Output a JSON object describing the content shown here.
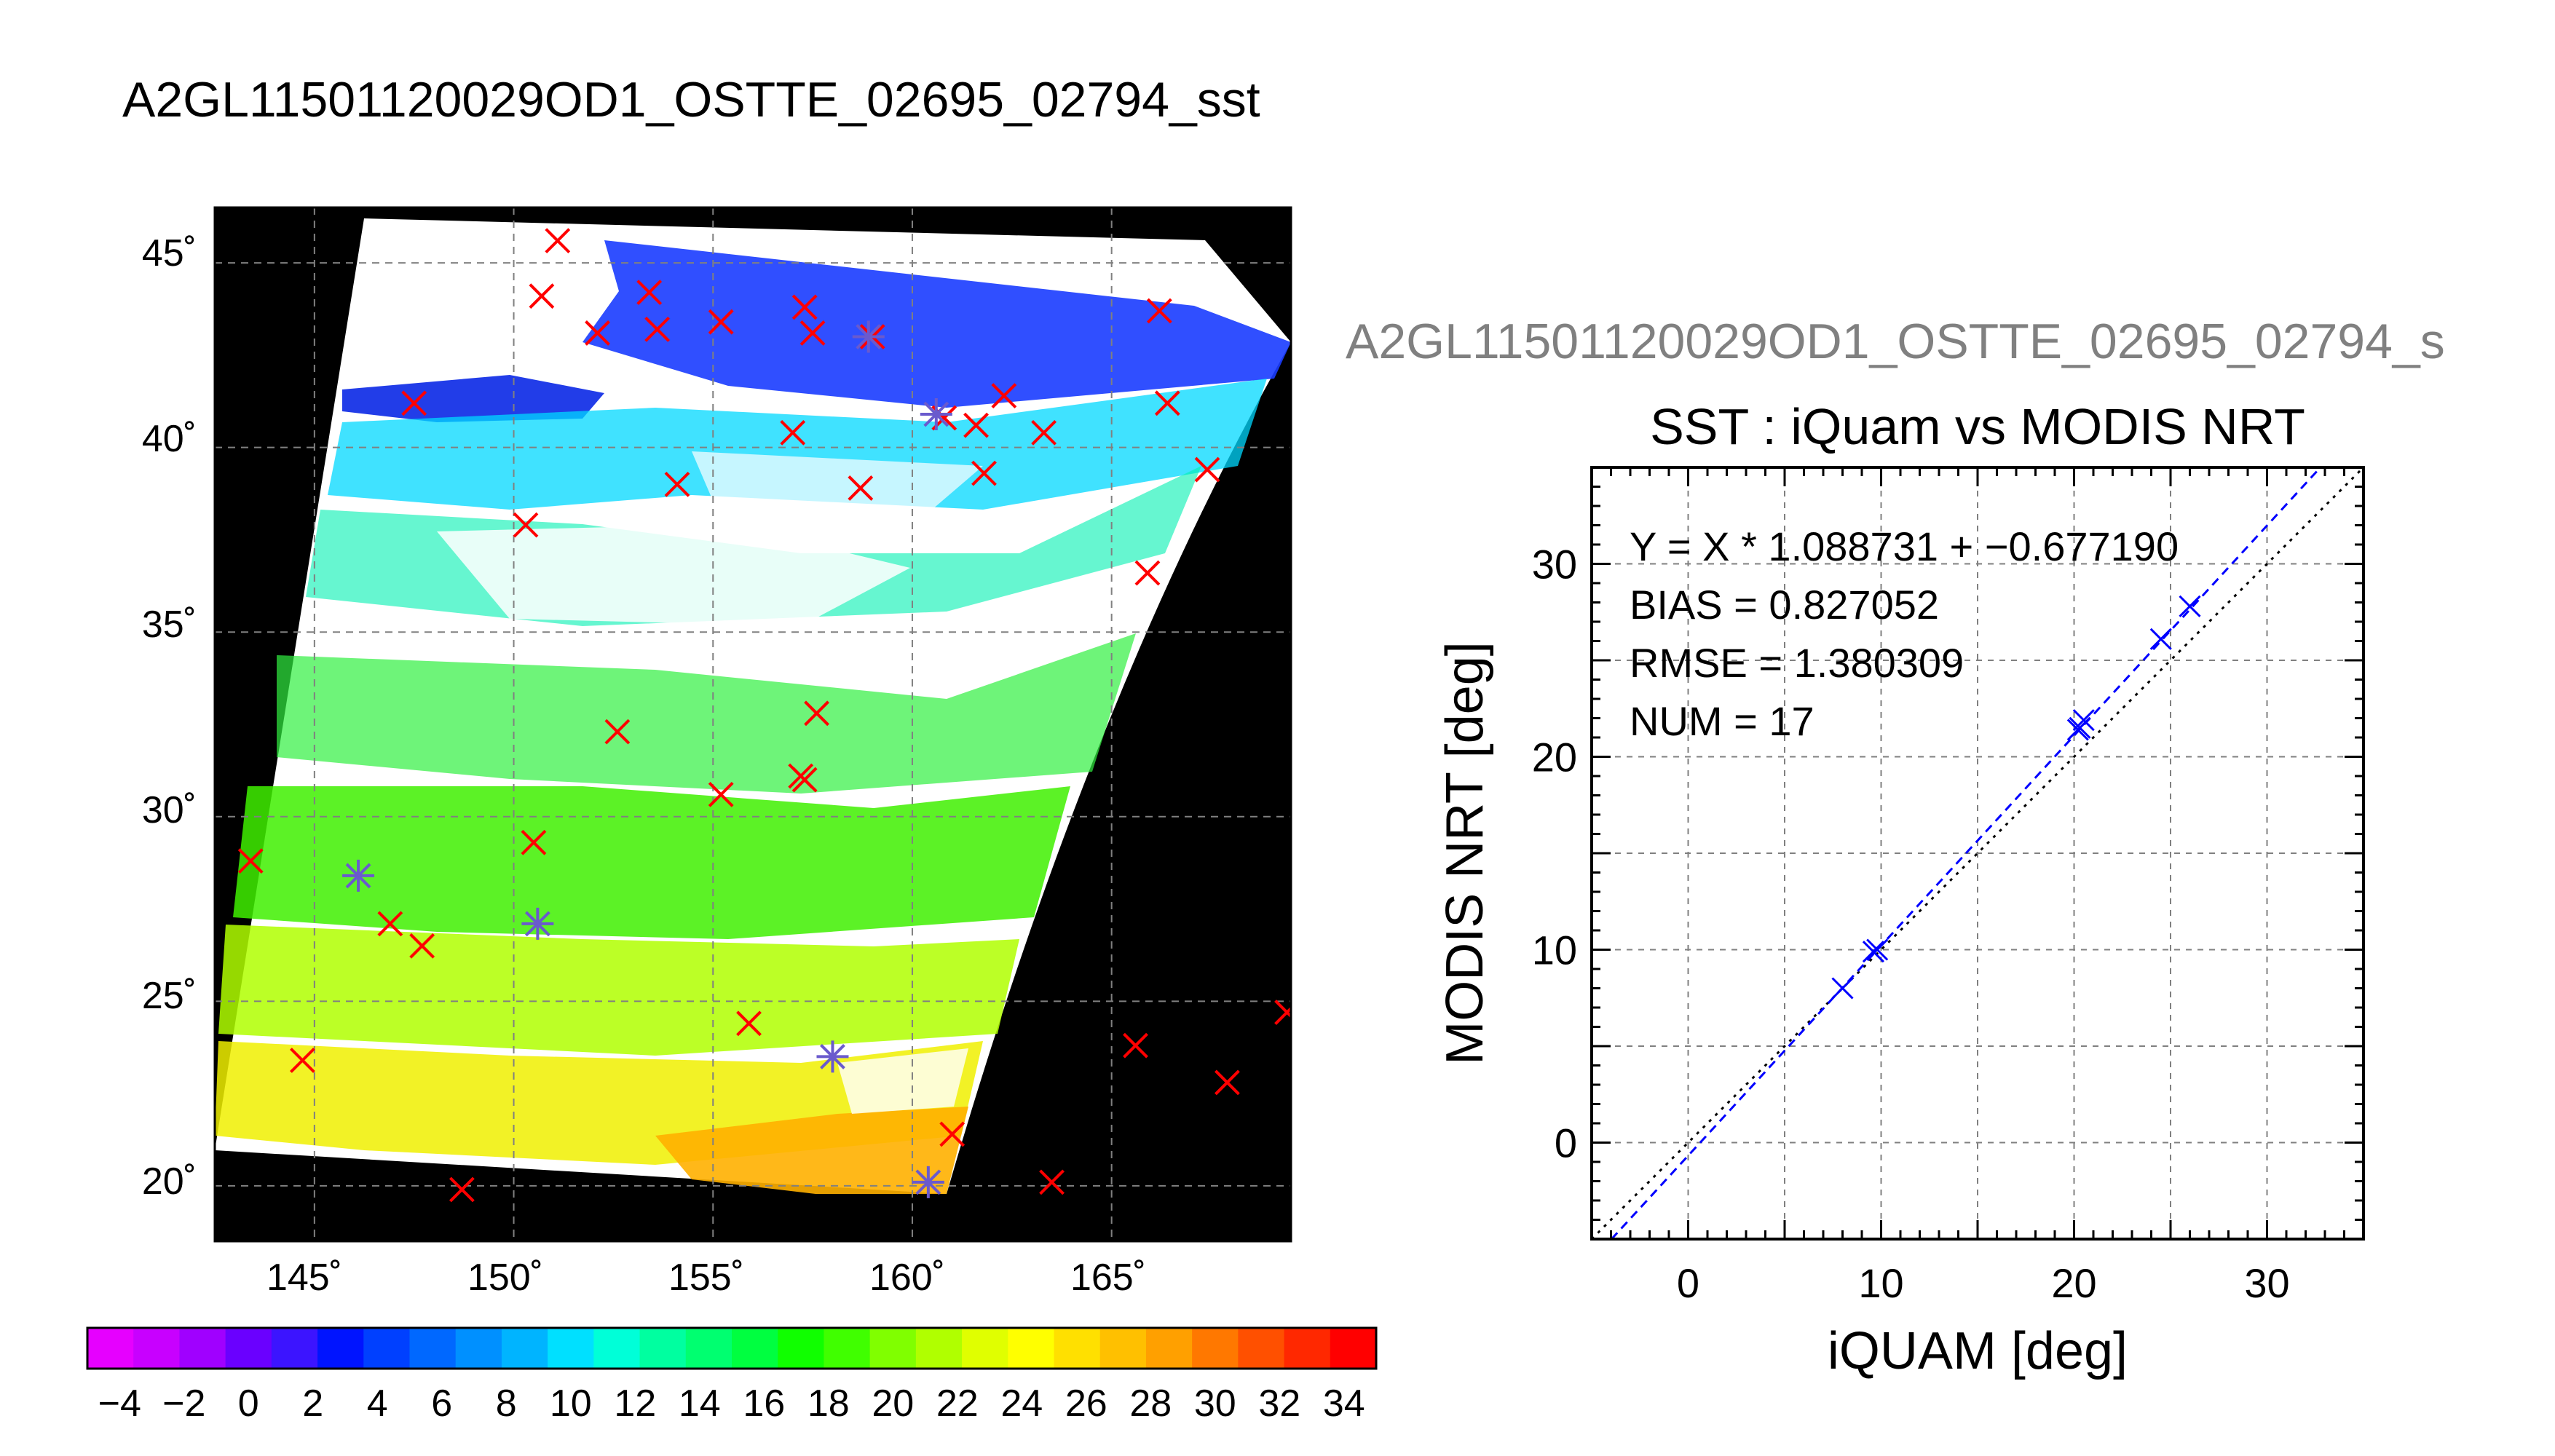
{
  "map": {
    "title": "A2GL11501120029OD1_OSTTE_02695_02794_sst",
    "lat_ticks": [
      "45˚",
      "40˚",
      "35˚",
      "30˚",
      "25˚",
      "20˚"
    ],
    "lon_ticks": [
      "145˚",
      "150˚",
      "155˚",
      "160˚",
      "165˚"
    ]
  },
  "colorbar": {
    "tick_labels": [
      "−4",
      "−2",
      "0",
      "2",
      "4",
      "6",
      "8",
      "10",
      "12",
      "14",
      "16",
      "18",
      "20",
      "22",
      "24",
      "26",
      "28",
      "30",
      "32",
      "34"
    ],
    "colors": [
      "#e600ff",
      "#c800ff",
      "#a000ff",
      "#6a00ff",
      "#3c14ff",
      "#0014ff",
      "#0040ff",
      "#0068ff",
      "#0090ff",
      "#00b4ff",
      "#00e0ff",
      "#00ffd8",
      "#00ffa0",
      "#00ff70",
      "#00ff40",
      "#10ff00",
      "#40ff00",
      "#80ff00",
      "#b0ff00",
      "#e0ff00",
      "#ffff00",
      "#ffe000",
      "#ffc000",
      "#ffa000",
      "#ff7800",
      "#ff5000",
      "#ff2800",
      "#ff0000"
    ]
  },
  "scatter": {
    "file_label": "A2GL11501120029OD1_OSTTE_02695_02794_s",
    "title": "SST : iQuam vs MODIS NRT",
    "xlabel": "iQUAM [deg]",
    "ylabel": "MODIS NRT [deg]",
    "stats": {
      "fit": "Y = X * 1.088731 + −0.677190",
      "bias": "BIAS = 0.827052",
      "rmse": "RMSE = 1.380309",
      "num": "NUM = 17"
    }
  },
  "chart_data": [
    {
      "type": "scatter",
      "title": "A2GL11501120029OD1_OSTTE_02695_02794_sst",
      "xlabel": "",
      "ylabel": "",
      "xlim": [
        142.5,
        169.5
      ],
      "ylim": [
        18.5,
        46.5
      ],
      "x_ticks": [
        145,
        150,
        155,
        160,
        165
      ],
      "y_ticks": [
        20,
        25,
        30,
        35,
        40,
        45
      ],
      "grid": true,
      "colorbar_range": [
        -5,
        35
      ],
      "series": [
        {
          "marker": "x",
          "color": "#ff0000",
          "points": [
            [
              151.1,
              45.6
            ],
            [
              150.7,
              44.1
            ],
            [
              152.1,
              43.1
            ],
            [
              153.4,
              44.2
            ],
            [
              153.6,
              43.2
            ],
            [
              155.2,
              43.4
            ],
            [
              157.3,
              43.8
            ],
            [
              157.5,
              43.1
            ],
            [
              159.0,
              43.0
            ],
            [
              147.5,
              41.2
            ],
            [
              160.8,
              40.8
            ],
            [
              161.6,
              40.6
            ],
            [
              162.3,
              41.4
            ],
            [
              163.3,
              40.4
            ],
            [
              166.2,
              43.7
            ],
            [
              166.4,
              41.2
            ],
            [
              167.4,
              39.4
            ],
            [
              157.0,
              40.4
            ],
            [
              161.8,
              39.3
            ],
            [
              154.1,
              39.0
            ],
            [
              158.7,
              38.9
            ],
            [
              150.3,
              37.9
            ],
            [
              165.9,
              36.6
            ],
            [
              152.6,
              32.3
            ],
            [
              157.6,
              32.8
            ],
            [
              157.2,
              31.1
            ],
            [
              157.3,
              31.0
            ],
            [
              155.2,
              30.6
            ],
            [
              150.5,
              29.3
            ],
            [
              143.4,
              28.8
            ],
            [
              146.9,
              27.1
            ],
            [
              147.7,
              26.5
            ],
            [
              144.7,
              23.4
            ],
            [
              155.9,
              24.4
            ],
            [
              165.6,
              23.8
            ],
            [
              169.4,
              24.7
            ],
            [
              167.9,
              22.8
            ],
            [
              161.0,
              21.4
            ],
            [
              163.5,
              20.1
            ],
            [
              148.7,
              19.9
            ]
          ]
        },
        {
          "marker": "star",
          "color": "#6a5acd",
          "points": [
            [
              146.1,
              28.4
            ],
            [
              150.6,
              27.1
            ],
            [
              158.0,
              23.5
            ],
            [
              160.4,
              20.1
            ],
            [
              160.6,
              40.9
            ],
            [
              158.9,
              43.0
            ]
          ]
        }
      ]
    },
    {
      "type": "scatter",
      "title": "SST : iQuam vs MODIS NRT",
      "xlabel": "iQUAM [deg]",
      "ylabel": "MODIS NRT [deg]",
      "xlim": [
        -5,
        35
      ],
      "ylim": [
        -5,
        35
      ],
      "x_ticks": [
        0,
        10,
        20,
        30
      ],
      "y_ticks": [
        0,
        10,
        20,
        30
      ],
      "grid": true,
      "series": [
        {
          "marker": "x",
          "color": "#0000ff",
          "x": [
            8.0,
            9.8,
            9.6,
            20.2,
            20.5,
            20.3,
            24.5,
            26.0
          ],
          "y": [
            8.0,
            10.0,
            9.9,
            21.4,
            21.9,
            21.5,
            26.1,
            27.8
          ]
        }
      ],
      "lines": [
        {
          "label": "fit",
          "slope": 1.088731,
          "intercept": -0.67719,
          "color": "#0000ff",
          "style": "dashed"
        },
        {
          "label": "one-to-one",
          "slope": 1,
          "intercept": 0,
          "color": "#000000",
          "style": "dotted"
        }
      ]
    }
  ]
}
